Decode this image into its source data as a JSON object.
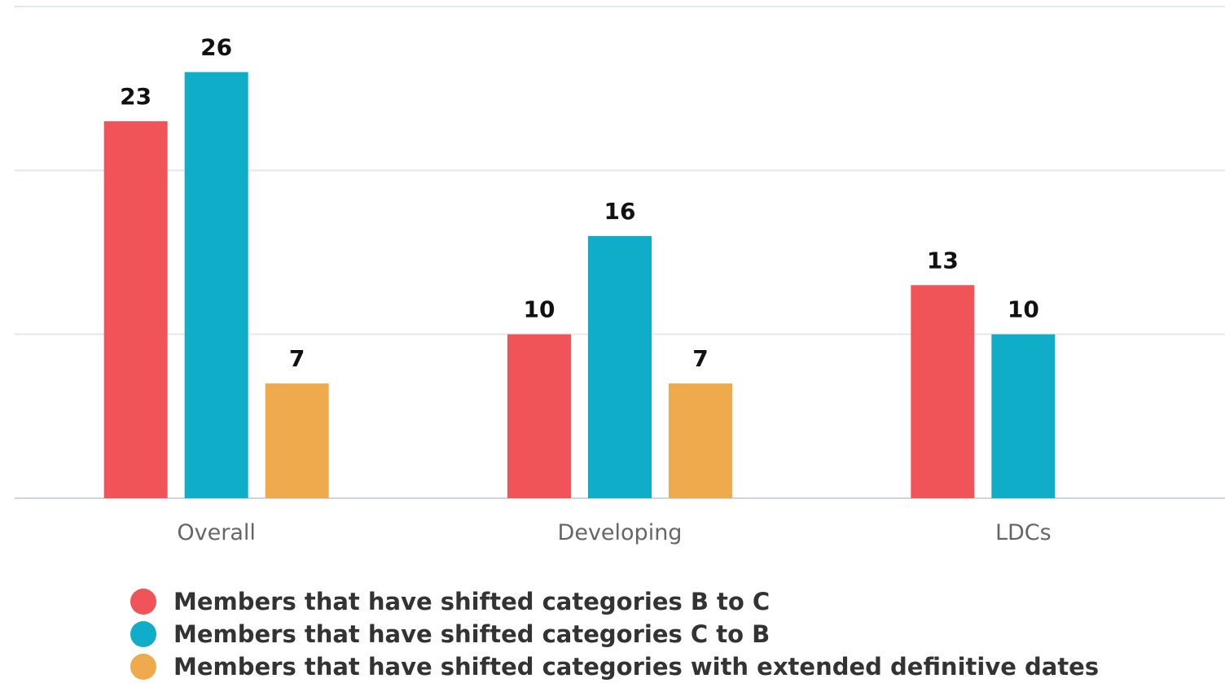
{
  "chart_data": {
    "type": "bar",
    "categories": [
      "Overall",
      "Developing",
      "LDCs"
    ],
    "series": [
      {
        "name": "Members that have shifted categories B to C",
        "color": "#f05458",
        "values": [
          23,
          10,
          13
        ]
      },
      {
        "name": "Members that have shifted categories C to B",
        "color": "#10adc8",
        "values": [
          26,
          16,
          10
        ]
      },
      {
        "name": "Members that have shifted categories with extended definitive dates",
        "color": "#eeaa4d",
        "values": [
          7,
          7,
          null
        ]
      }
    ],
    "title": "",
    "xlabel": "",
    "ylabel": "",
    "ylim": [
      0,
      30
    ],
    "grid": true,
    "data_labels": true,
    "legend_position": "bottom-left"
  }
}
